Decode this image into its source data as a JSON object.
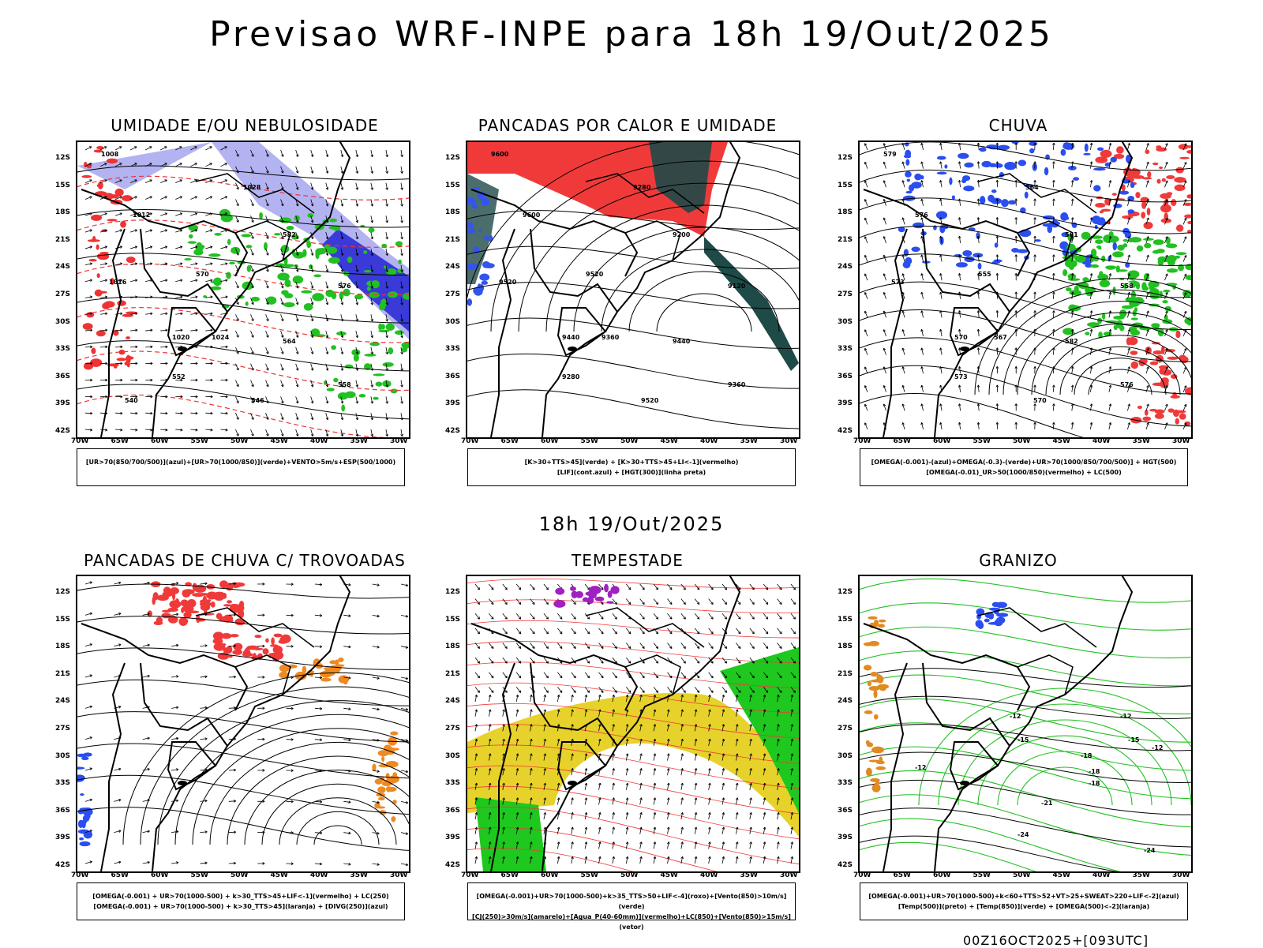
{
  "header": {
    "title": "Previsao WRF-INPE  para 18h 19/Out/2025"
  },
  "mid_label": "18h 19/Out/2025",
  "footer": "00Z16OCT2025+[093UTC]",
  "lat_labels": [
    "12S",
    "15S",
    "18S",
    "21S",
    "24S",
    "27S",
    "30S",
    "33S",
    "36S",
    "39S",
    "42S"
  ],
  "lon_labels": [
    "70W",
    "65W",
    "60W",
    "55W",
    "50W",
    "45W",
    "40W",
    "35W",
    "30W"
  ],
  "panels": [
    {
      "title": "UMIDADE E/OU NEBULOSIDADE",
      "legend_lines": [
        "[UR>70(850/700/500)](azul)+[UR>70(1000/850)](verde)+VENTO>5m/s+ESP(500/1000)"
      ],
      "contour_labels": [
        "1008",
        "1012",
        "1016",
        "1020",
        "1024",
        "1028",
        "582",
        "576",
        "570",
        "564",
        "558",
        "552",
        "546",
        "540"
      ],
      "colors": {
        "shade1": "#b3b3f2",
        "shade2": "#3a3ad8",
        "green": "#22c022",
        "red": "#ee3333"
      }
    },
    {
      "title": "PANCADAS POR CALOR E UMIDADE",
      "legend_lines": [
        "[K>30+TTS>45](verde) + [K>30+TTS>45+LI<-1](vermelho)",
        "[LIF](cont.azul) + [HGT(300)](linha preta)"
      ],
      "contour_labels": [
        "9600",
        "9600",
        "9520",
        "9440",
        "9360",
        "9280",
        "9200",
        "9120",
        "9520",
        "9440",
        "9360",
        "9280",
        "9520"
      ],
      "colors": {
        "red": "#f03a3a",
        "teal": "#1e4a48",
        "blue": "#3355ee"
      }
    },
    {
      "title": "CHUVA",
      "legend_lines": [
        "[OMEGA(-0.001)-(azul)+OMEGA(-0.3)-(verde)+UR>70(1000/850/700/500)] + HGT(500)",
        "[OMEGA(-0.01)_UR>50(1000/850)(vermelho) + LC(500)"
      ],
      "contour_labels": [
        "579",
        "576",
        "573",
        "570",
        "567",
        "564",
        "561",
        "558",
        "555",
        "582",
        "576",
        "573",
        "570"
      ],
      "colors": {
        "blue": "#2a4ef0",
        "green": "#22c022",
        "red": "#f03a3a"
      }
    },
    {
      "title": "PANCADAS DE CHUVA C/ TROVOADAS",
      "legend_lines": [
        "[OMEGA(-0.001) + UR>70(1000-500) + k>30_TTS>45+LIF<-1](vermelho) + LC(250)",
        "[OMEGA(-0.001) + UR>70(1000-500) + k>30_TTS>45](laranja) + [DIVG(250)](azul)"
      ],
      "contour_labels": [],
      "colors": {
        "red": "#f03a3a",
        "orange": "#ee8a22",
        "blue": "#2a4ef0"
      }
    },
    {
      "title": "TEMPESTADE",
      "legend_lines": [
        "[OMEGA(-0.001)+UR>70(1000-500)+k>35_TTS>50+LIF<-4](roxo)+[Vento(850)>10m/s](verde)",
        "[CJ(250)>30m/s](amarelo)+[Agua_P(40-60mm)](vermelho)+LC(850)+[Vento(850)>15m/s](vetor)"
      ],
      "contour_labels": [],
      "colors": {
        "yellow": "#e6d22a",
        "green": "#1ec81e",
        "red": "#f03a3a",
        "purple": "#a020c0"
      }
    },
    {
      "title": "GRANIZO",
      "legend_lines": [
        "[OMEGA(-0.001)+UR>70(1000-500)+k<60+TTS>52+VT>25+SWEAT>220+LIF<-2](azul)",
        "[Temp(500)](preto) + [Temp(850)](verde) + [OMEGA(500)<-2](laranja)"
      ],
      "contour_labels": [
        "-12",
        "-12",
        "-15",
        "-18",
        "-21",
        "-24",
        "-24",
        "-12",
        "-15",
        "-18",
        "-18",
        "-12"
      ],
      "colors": {
        "green": "#22c022",
        "orange": "#e08a22",
        "blue": "#2a4ef0"
      }
    }
  ]
}
